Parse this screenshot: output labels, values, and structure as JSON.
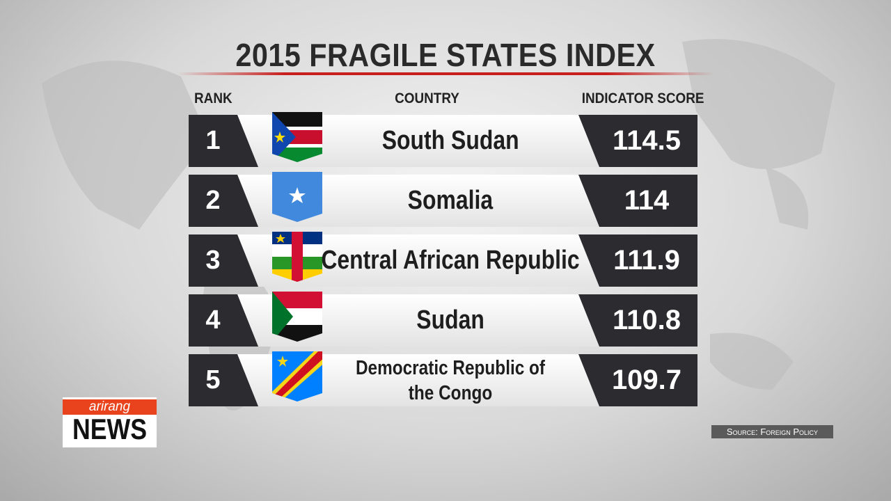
{
  "header": {
    "title": "2015 FRAGILE STATES INDEX"
  },
  "table": {
    "columns": [
      "RANK",
      "COUNTRY",
      "INDICATOR SCORE"
    ],
    "rows": [
      {
        "rank": 1,
        "country": "South Sudan",
        "score": "114.5"
      },
      {
        "rank": 2,
        "country": "Somalia",
        "score": "114"
      },
      {
        "rank": 3,
        "country": "Central African Republic",
        "score": "111.9"
      },
      {
        "rank": 4,
        "country": "Sudan",
        "score": "110.8"
      },
      {
        "rank": 5,
        "country": "Democratic Republic of the Congo",
        "score": "109.7"
      }
    ]
  },
  "logo": {
    "brand": "arirang",
    "name": "NEWS"
  },
  "source": "Source: Foreign Policy"
}
